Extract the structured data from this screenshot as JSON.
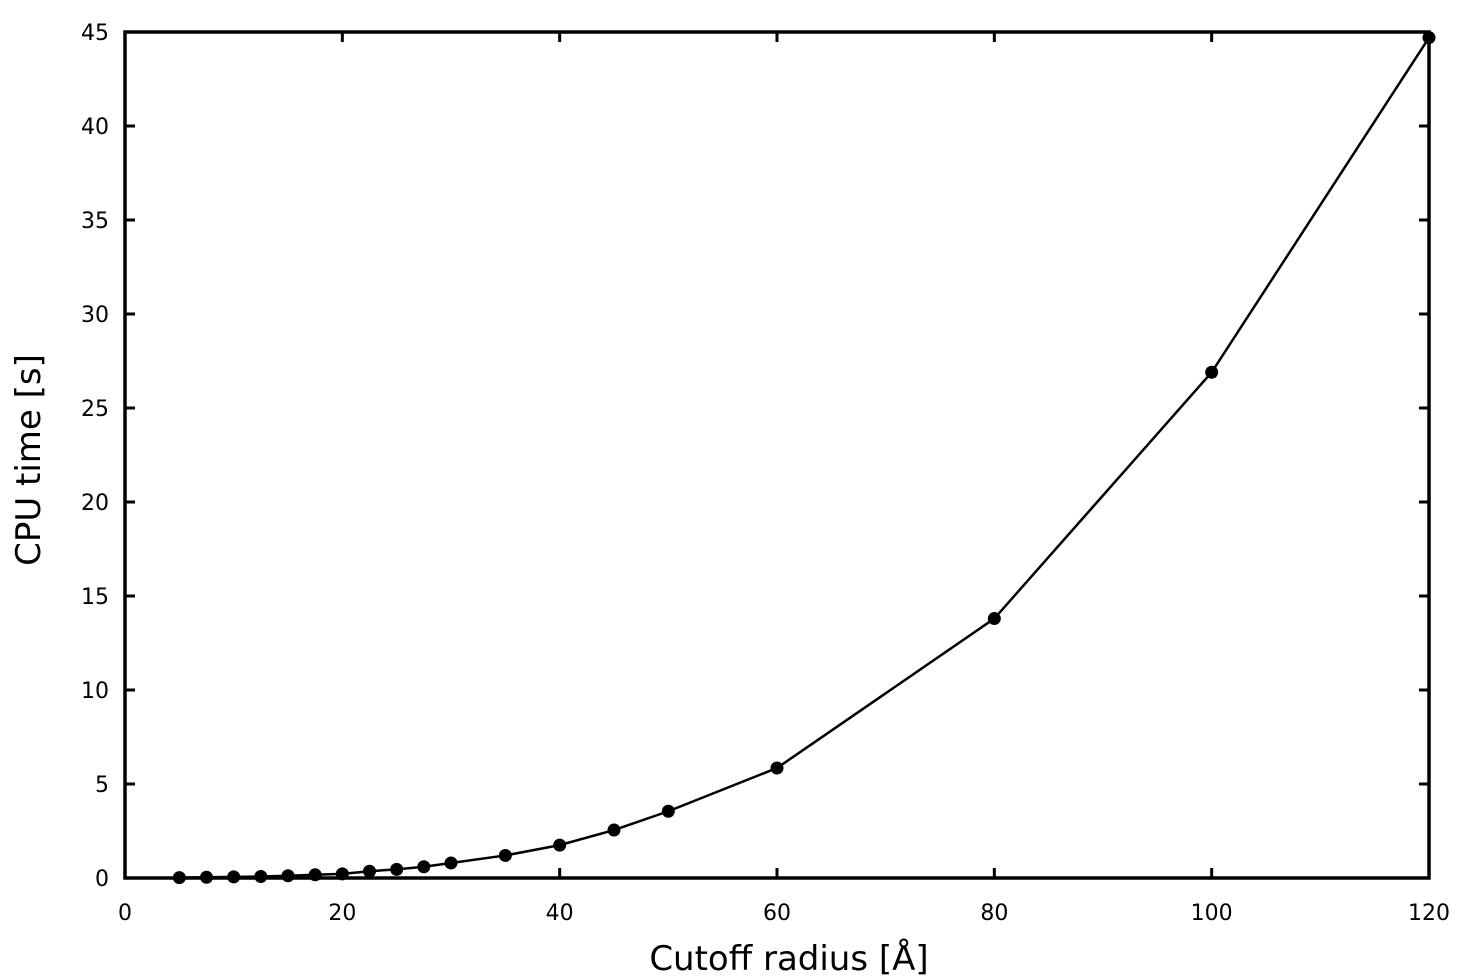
{
  "chart_data": {
    "type": "line",
    "title": "",
    "xlabel": "Cutoff radius [Å]",
    "ylabel": "CPU time [s]",
    "xlim": [
      0,
      120
    ],
    "ylim": [
      0,
      45
    ],
    "xticks": [
      0,
      20,
      40,
      60,
      80,
      100,
      120
    ],
    "yticks": [
      0,
      5,
      10,
      15,
      20,
      25,
      30,
      35,
      40,
      45
    ],
    "grid": false,
    "legend": "none",
    "series": [
      {
        "marker": "circle",
        "color": "#000000",
        "x": [
          5,
          7.5,
          10,
          12.5,
          15,
          17.5,
          20,
          22.5,
          25,
          27.5,
          30,
          35,
          40,
          45,
          50,
          60,
          80,
          100,
          120
        ],
        "y": [
          0.02,
          0.04,
          0.06,
          0.08,
          0.12,
          0.17,
          0.22,
          0.36,
          0.46,
          0.6,
          0.8,
          1.2,
          1.75,
          2.55,
          3.55,
          5.85,
          13.8,
          26.9,
          44.7
        ]
      }
    ]
  }
}
